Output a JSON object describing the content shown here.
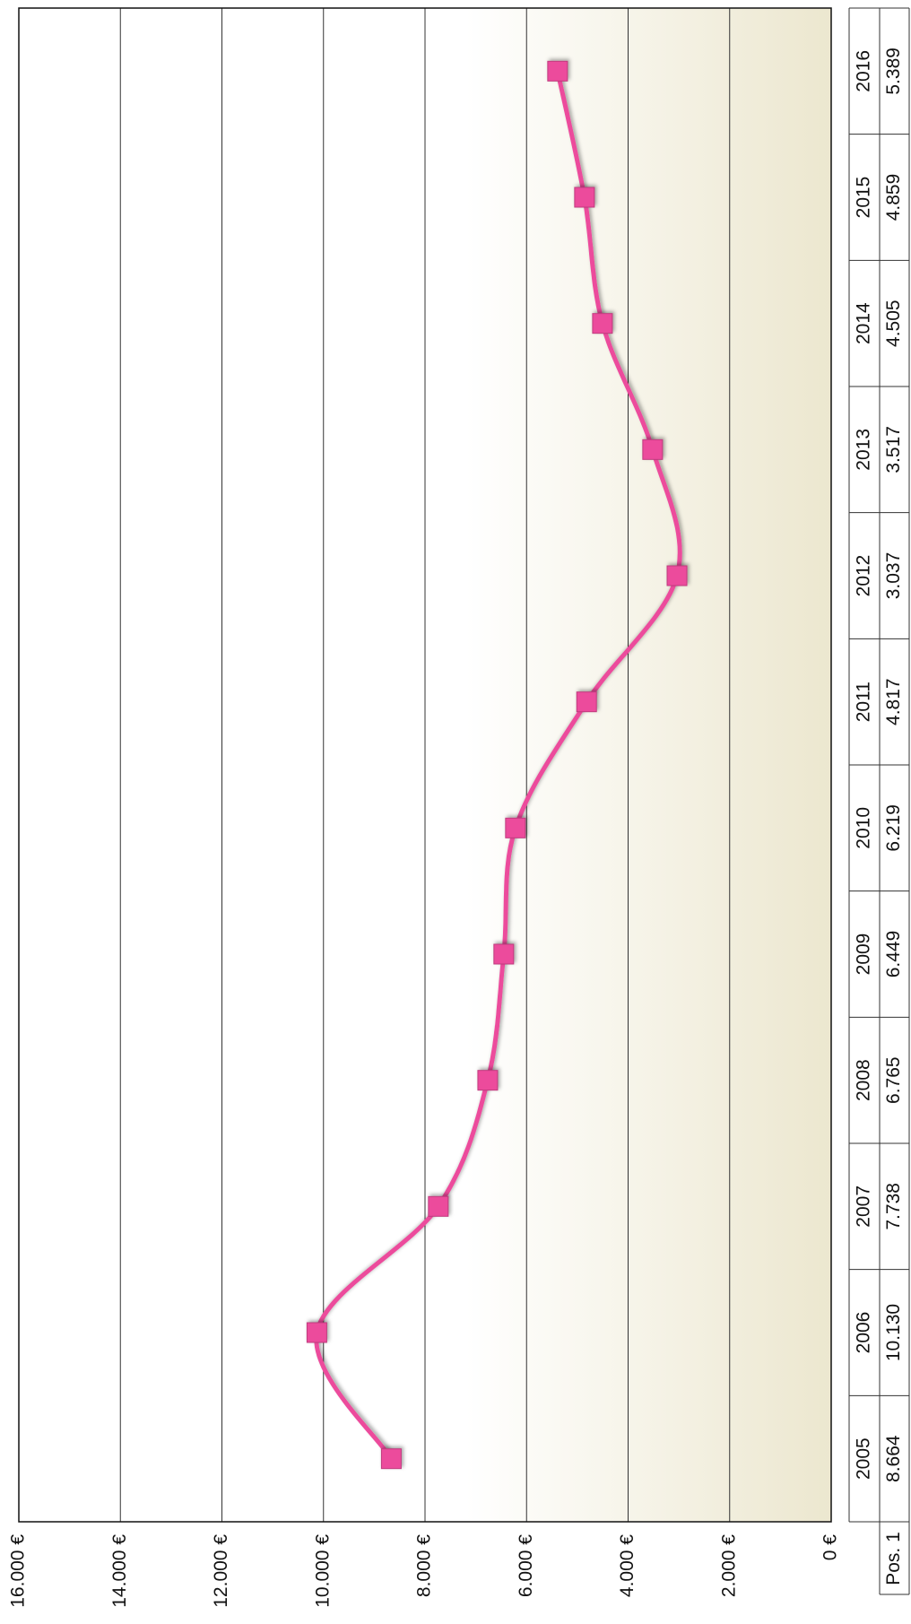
{
  "chart_data": {
    "type": "line",
    "categories": [
      "2005",
      "2006",
      "2007",
      "2008",
      "2009",
      "2010",
      "2011",
      "2012",
      "2013",
      "2014",
      "2015",
      "2016"
    ],
    "series": [
      {
        "name": "Pos. 1",
        "color": "#ec4c9c",
        "values": [
          8664,
          10130,
          7738,
          6765,
          6449,
          6219,
          4817,
          3037,
          3517,
          4505,
          4859,
          5389
        ],
        "value_labels": [
          "8.664",
          "10.130",
          "7.738",
          "6.765",
          "6.449",
          "6.219",
          "4.817",
          "3.037",
          "3.517",
          "4.505",
          "4.859",
          "5.389"
        ]
      }
    ],
    "ylim": [
      0,
      16000
    ],
    "yticks": [
      {
        "value": 0,
        "label": "0 €"
      },
      {
        "value": 2000,
        "label": "2.000 €"
      },
      {
        "value": 4000,
        "label": "4.000 €"
      },
      {
        "value": 6000,
        "label": "6.000 €"
      },
      {
        "value": 8000,
        "label": "8.000 €"
      },
      {
        "value": 10000,
        "label": "10.000 €"
      },
      {
        "value": 12000,
        "label": "12.000 €"
      },
      {
        "value": 14000,
        "label": "14.000 €"
      },
      {
        "value": 16000,
        "label": "16.000 €"
      }
    ],
    "grid": true
  }
}
